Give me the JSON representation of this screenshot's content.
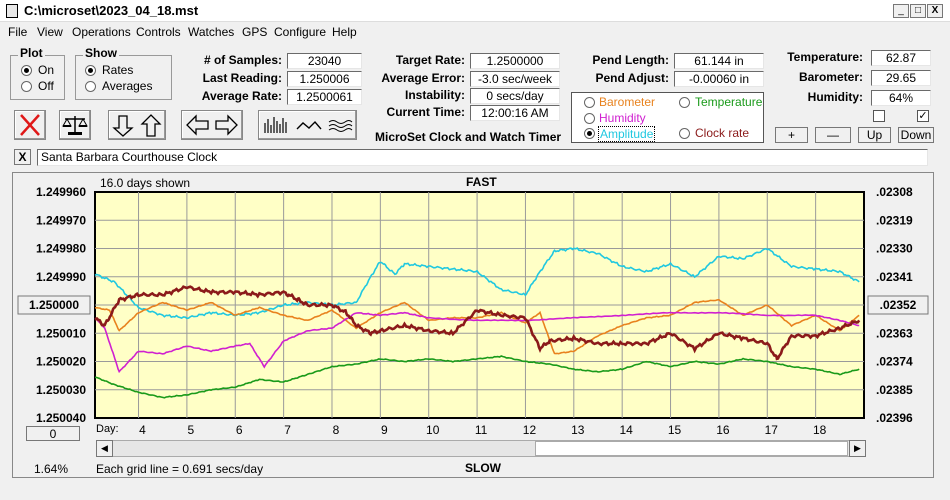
{
  "window": {
    "title": "C:\\microset\\2023_04_18.mst",
    "controls": [
      "_",
      "□",
      "X"
    ]
  },
  "menu": [
    "File",
    "View",
    "Operations",
    "Controls",
    "Watches",
    "GPS",
    "Configure",
    "Help"
  ],
  "plot_group": {
    "title": "Plot",
    "options": [
      "On",
      "Off"
    ],
    "selected": "On"
  },
  "show_group": {
    "title": "Show",
    "options": [
      "Rates",
      "Averages"
    ],
    "selected": "Rates"
  },
  "stats": [
    {
      "label": "# of Samples:",
      "value": "23040"
    },
    {
      "label": "Last Reading:",
      "value": "1.250006"
    },
    {
      "label": "Average Rate:",
      "value": "1.2500061"
    }
  ],
  "targets": [
    {
      "label": "Target Rate:",
      "value": "1.2500000"
    },
    {
      "label": "Average Error:",
      "value": "-3.0 sec/week"
    },
    {
      "label": "Instability:",
      "value": "0 secs/day"
    },
    {
      "label": "Current Time:",
      "value": "12:00:16 AM"
    }
  ],
  "app_caption": "MicroSet Clock and Watch Timer",
  "pend": [
    {
      "label": "Pend Length:",
      "value": "61.144 in"
    },
    {
      "label": "Pend Adjust:",
      "value": "-0.00060 in"
    }
  ],
  "env": [
    {
      "label": "Temperature:",
      "value": "62.87"
    },
    {
      "label": "Barometer:",
      "value": "29.65"
    },
    {
      "label": "Humidity:",
      "value": "64%"
    }
  ],
  "env_checks": [
    false,
    true
  ],
  "env_buttons": [
    "+",
    "—",
    "Up",
    "Down"
  ],
  "series_options": [
    {
      "label": "Barometer",
      "color": "#e8821e",
      "selected": false
    },
    {
      "label": "Temperature",
      "color": "#1a9a1a",
      "selected": false
    },
    {
      "label": "Humidity",
      "color": "#d020d0",
      "selected": false
    },
    {
      "label": "Amplitude",
      "color": "#20c8e0",
      "selected": true
    },
    {
      "label": "Clock rate",
      "color": "#8b1a1a",
      "selected": false
    }
  ],
  "clock_name": "Santa Barbara Courthouse Clock",
  "clear_button": "X",
  "graph": {
    "top_label": "FAST",
    "bottom_label": "SLOW",
    "days_shown": "16.0 days shown",
    "grid_note": "Each grid line = 0.691 secs/day",
    "percent": "1.64%",
    "left_button": "0",
    "day_label": "Day:"
  },
  "chart_data": {
    "type": "line",
    "x_ticks": [
      "4",
      "5",
      "6",
      "7",
      "8",
      "9",
      "10",
      "11",
      "12",
      "13",
      "14",
      "15",
      "16",
      "17",
      "18"
    ],
    "xlim": [
      3.1,
      19
    ],
    "y_left": {
      "ticks": [
        "1.249960",
        "1.249970",
        "1.249980",
        "1.249990",
        "1.250000",
        "1.250010",
        "1.250020",
        "1.250030",
        "1.250040"
      ],
      "highlighted": "1.250000",
      "ylim": [
        1.24996,
        1.25004
      ]
    },
    "y_right": {
      "ticks": [
        ".02308",
        ".02319",
        ".02330",
        ".02341",
        ".02352",
        ".02363",
        ".02374",
        ".02385",
        ".02396"
      ],
      "highlighted": ".02352",
      "ylim": [
        0.02308,
        0.02396
      ]
    },
    "grid": true,
    "series": [
      {
        "name": "Amplitude",
        "color": "#20c8e0",
        "x": [
          3.1,
          3.5,
          4.0,
          4.5,
          5.0,
          5.5,
          6.0,
          6.5,
          7.0,
          7.5,
          8.0,
          8.5,
          8.8,
          9.0,
          9.3,
          9.5,
          10.0,
          10.5,
          11.0,
          11.5,
          12.0,
          12.3,
          12.6,
          13.0,
          13.5,
          14.0,
          14.5,
          15.0,
          15.5,
          16.0,
          16.5,
          17.0,
          17.5,
          18.0,
          18.5,
          18.9
        ],
        "values": [
          0.0234,
          0.02343,
          0.02353,
          0.02356,
          0.02357,
          0.02355,
          0.02356,
          0.02355,
          0.02352,
          0.02351,
          0.02352,
          0.02351,
          0.02341,
          0.02335,
          0.0234,
          0.02336,
          0.02337,
          0.02338,
          0.02339,
          0.02346,
          0.02348,
          0.02339,
          0.02331,
          0.0233,
          0.02332,
          0.02337,
          0.02339,
          0.02336,
          0.02341,
          0.02333,
          0.02334,
          0.0233,
          0.02337,
          0.02338,
          0.02339,
          0.02343
        ]
      },
      {
        "name": "Barometer",
        "color": "#e8821e",
        "x": [
          3.1,
          3.4,
          3.6,
          4.0,
          4.5,
          5.0,
          5.5,
          6.0,
          6.5,
          7.0,
          7.5,
          8.0,
          8.5,
          9.0,
          9.5,
          10.0,
          10.5,
          11.0,
          11.5,
          12.0,
          12.3,
          12.6,
          13.0,
          13.5,
          14.0,
          14.5,
          15.0,
          15.5,
          16.0,
          16.5,
          17.0,
          17.5,
          18.0,
          18.5,
          18.9
        ],
        "values": [
          0.02353,
          0.02354,
          0.02362,
          0.02355,
          0.02351,
          0.02354,
          0.02351,
          0.02356,
          0.02353,
          0.02356,
          0.02358,
          0.02354,
          0.02361,
          0.02355,
          0.02351,
          0.02358,
          0.02357,
          0.02357,
          0.02355,
          0.02359,
          0.02355,
          0.02371,
          0.0237,
          0.02364,
          0.0236,
          0.02357,
          0.02356,
          0.02351,
          0.0235,
          0.02356,
          0.02352,
          0.0236,
          0.02356,
          0.02362,
          0.02356
        ]
      },
      {
        "name": "Humidity",
        "color": "#d020d0",
        "x": [
          3.1,
          3.3,
          3.6,
          4.0,
          4.5,
          5.0,
          5.5,
          6.0,
          6.3,
          6.6,
          7.0,
          7.5,
          8.0,
          8.5,
          9.0,
          9.5,
          10.0,
          11.0,
          12.0,
          13.0,
          14.0,
          15.0,
          16.0,
          17.0,
          18.0,
          18.5,
          18.9
        ],
        "values": [
          0.02357,
          0.02361,
          0.02378,
          0.0237,
          0.02371,
          0.02368,
          0.0237,
          0.02368,
          0.02367,
          0.02376,
          0.02366,
          0.02362,
          0.02361,
          0.02355,
          0.02356,
          0.02355,
          0.02357,
          0.02358,
          0.02358,
          0.02357,
          0.02356,
          0.02355,
          0.02355,
          0.02356,
          0.02356,
          0.02358,
          0.0236
        ]
      },
      {
        "name": "Temperature",
        "color": "#1a9a1a",
        "x": [
          3.1,
          3.5,
          4.0,
          4.5,
          5.0,
          5.5,
          6.0,
          6.5,
          7.0,
          7.5,
          8.0,
          8.5,
          9.0,
          9.5,
          10.0,
          10.5,
          11.0,
          11.5,
          12.0,
          12.5,
          13.0,
          13.5,
          14.0,
          14.5,
          15.0,
          15.5,
          16.0,
          16.5,
          17.0,
          17.5,
          18.0,
          18.5,
          18.9
        ],
        "values": [
          0.0238,
          0.02383,
          0.02386,
          0.02388,
          0.02387,
          0.02385,
          0.02384,
          0.02381,
          0.02382,
          0.02379,
          0.02376,
          0.02375,
          0.02373,
          0.02374,
          0.02373,
          0.02374,
          0.02373,
          0.02372,
          0.02374,
          0.02375,
          0.02377,
          0.02378,
          0.02377,
          0.02374,
          0.02376,
          0.02374,
          0.02375,
          0.02373,
          0.02374,
          0.02376,
          0.02377,
          0.02379,
          0.02377
        ]
      },
      {
        "name": "Clock rate",
        "color": "#8b1a1a",
        "x": [
          3.1,
          3.3,
          3.6,
          4.0,
          4.5,
          5.0,
          5.5,
          6.0,
          6.5,
          7.0,
          7.3,
          7.5,
          8.0,
          8.3,
          8.5,
          8.8,
          9.0,
          9.5,
          10.0,
          10.5,
          11.0,
          11.5,
          12.0,
          12.3,
          12.5,
          13.0,
          13.5,
          14.0,
          14.5,
          15.0,
          15.5,
          16.0,
          16.5,
          17.0,
          17.2,
          17.5,
          18.0,
          18.5,
          18.9
        ],
        "values": [
          0.02357,
          0.0236,
          0.0235,
          0.02348,
          0.02348,
          0.02345,
          0.02347,
          0.02347,
          0.02348,
          0.02347,
          0.0235,
          0.02352,
          0.02352,
          0.02355,
          0.0236,
          0.02363,
          0.02362,
          0.0236,
          0.02362,
          0.02363,
          0.02354,
          0.02356,
          0.02357,
          0.02369,
          0.02366,
          0.02365,
          0.02367,
          0.02367,
          0.02367,
          0.02363,
          0.02369,
          0.02363,
          0.02365,
          0.02367,
          0.02373,
          0.02364,
          0.02364,
          0.02361,
          0.02358
        ]
      }
    ]
  }
}
